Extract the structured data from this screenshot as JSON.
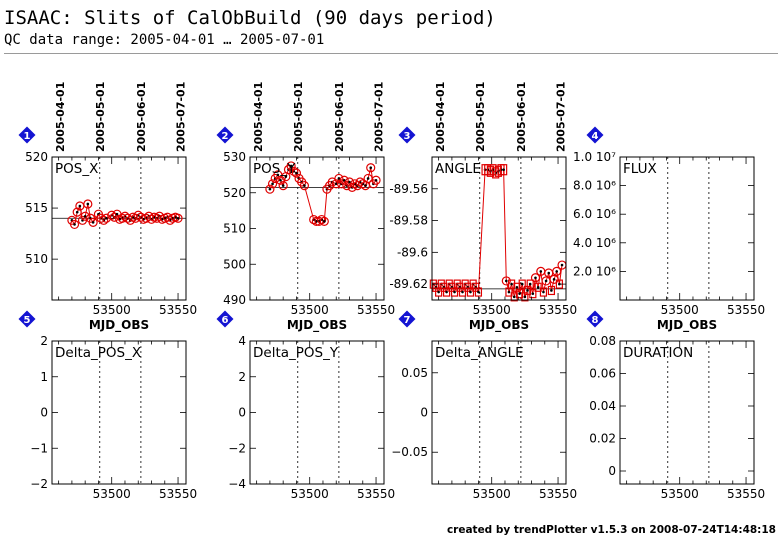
{
  "header": {
    "title": "ISAAC: Slits of CalObBuild (90 days period)",
    "subtitle": "QC data range: 2005-04-01 … 2005-07-01"
  },
  "footer": {
    "text": "created by trendPlotter v1.5.3 on 2008-07-24T14:48:18"
  },
  "colors": {
    "data": "#e00000",
    "points": "#000000",
    "marker": "#1414d2",
    "vline": "#000000",
    "refline": "#000000"
  },
  "date_axis": {
    "ticks": [
      "2005-04-01",
      "2005-05-01",
      "2005-06-01",
      "2005-07-01"
    ],
    "tick_mjd": [
      53461,
      53491,
      53522,
      53552
    ]
  },
  "chart_data": [
    {
      "id": "1",
      "type": "scatter",
      "title": "POS_X",
      "xlabel": "MJD_OBS",
      "xlim": [
        53455,
        53556
      ],
      "xticks": [
        53500,
        53550
      ],
      "ylim": [
        506,
        520
      ],
      "yticks": [
        510,
        515,
        520
      ],
      "yticklabels": [
        "510",
        "515",
        "520"
      ],
      "reference": 514,
      "x": [
        53470,
        53472,
        53474,
        53476,
        53478,
        53480,
        53482,
        53484,
        53486,
        53490,
        53492,
        53494,
        53496,
        53500,
        53502,
        53504,
        53506,
        53508,
        53510,
        53512,
        53514,
        53516,
        53518,
        53520,
        53522,
        53524,
        53526,
        53528,
        53530,
        53532,
        53534,
        53536,
        53538,
        53540,
        53542,
        53544,
        53546,
        53548,
        53550
      ],
      "y": [
        513.8,
        513.4,
        514.6,
        515.2,
        513.8,
        514.2,
        515.4,
        514.0,
        513.6,
        514.4,
        514.0,
        513.8,
        514.0,
        514.3,
        514.1,
        514.4,
        513.9,
        514.0,
        514.2,
        514.0,
        513.8,
        514.1,
        514.0,
        514.3,
        514.1,
        513.9,
        514.0,
        514.2,
        513.9,
        514.1,
        514.0,
        514.2,
        513.9,
        514.0,
        514.1,
        513.8,
        514.0,
        514.1,
        514.0
      ]
    },
    {
      "id": "2",
      "type": "scatter",
      "title": "POS_Y",
      "xlabel": "MJD_OBS",
      "xlim": [
        53455,
        53556
      ],
      "xticks": [
        53500,
        53550
      ],
      "ylim": [
        490,
        530
      ],
      "yticks": [
        490,
        500,
        510,
        520,
        530
      ],
      "yticklabels": [
        "490",
        "500",
        "510",
        "520",
        "530"
      ],
      "reference": 521.5,
      "x": [
        53470,
        53472,
        53474,
        53476,
        53478,
        53480,
        53482,
        53484,
        53486,
        53488,
        53490,
        53492,
        53494,
        53496,
        53503,
        53505,
        53507,
        53509,
        53511,
        53513,
        53515,
        53517,
        53520,
        53522,
        53524,
        53526,
        53528,
        53530,
        53532,
        53534,
        53536,
        53538,
        53540,
        53542,
        53544,
        53546,
        53548,
        53550
      ],
      "y": [
        521.0,
        522.5,
        524.0,
        525.0,
        523.5,
        522.0,
        524.5,
        526.5,
        527.5,
        526.0,
        525.5,
        524.0,
        523.0,
        522.0,
        512.5,
        512.0,
        512.0,
        512.5,
        512.0,
        521.0,
        522.0,
        523.0,
        522.5,
        524.0,
        522.5,
        523.5,
        522.0,
        523.0,
        521.5,
        522.5,
        522.0,
        523.0,
        522.5,
        522.0,
        524.0,
        527.0,
        522.5,
        523.5
      ]
    },
    {
      "id": "3",
      "type": "scatter",
      "title": "ANGLE",
      "xlabel": "MJD_OBS",
      "xlim": [
        53455,
        53556
      ],
      "xticks": [
        53500,
        53550
      ],
      "ylim": [
        -89.63,
        -89.54
      ],
      "yticks": [
        -89.62,
        -89.6,
        -89.58,
        -89.56
      ],
      "yticklabels": [
        "-89.62",
        "-89.6",
        "-89.58",
        "-89.56"
      ],
      "reference": -89.623,
      "x": [
        53456,
        53458,
        53460,
        53462,
        53464,
        53466,
        53468,
        53470,
        53472,
        53474,
        53476,
        53478,
        53480,
        53482,
        53484,
        53486,
        53488,
        53490,
        53495,
        53497,
        53499,
        53501,
        53503,
        53505,
        53507,
        53509,
        53511,
        53513,
        53515,
        53517,
        53519,
        53521,
        53523,
        53525,
        53527,
        53529,
        53531,
        53533,
        53535,
        53537,
        53539,
        53541,
        53543,
        53545,
        53547,
        53549,
        53551,
        53553
      ],
      "y": [
        -89.62,
        -89.622,
        -89.625,
        -89.62,
        -89.622,
        -89.625,
        -89.62,
        -89.622,
        -89.625,
        -89.62,
        -89.622,
        -89.625,
        -89.62,
        -89.622,
        -89.625,
        -89.62,
        -89.622,
        -89.625,
        -89.548,
        -89.548,
        -89.549,
        -89.548,
        -89.55,
        -89.549,
        -89.548,
        -89.548,
        -89.618,
        -89.625,
        -89.62,
        -89.628,
        -89.622,
        -89.626,
        -89.62,
        -89.628,
        -89.624,
        -89.62,
        -89.626,
        -89.616,
        -89.622,
        -89.612,
        -89.625,
        -89.618,
        -89.613,
        -89.624,
        -89.617,
        -89.612,
        -89.62,
        -89.608
      ]
    },
    {
      "id": "4",
      "type": "scatter",
      "title": "FLUX",
      "xlabel": "MJD_OBS",
      "xlim": [
        53455,
        53556
      ],
      "xticks": [
        53500,
        53550
      ],
      "ylim": [
        0,
        10000000
      ],
      "yticks": [
        2000000,
        4000000,
        6000000,
        8000000,
        10000000
      ],
      "yticklabels": [
        "2.0 10⁶",
        "4.0 10⁶",
        "6.0 10⁶",
        "8.0 10⁶",
        "1.0 10⁷"
      ],
      "reference": null,
      "x": [],
      "y": []
    },
    {
      "id": "5",
      "type": "scatter",
      "title": "Delta_POS_X",
      "xlabel": "",
      "xlim": [
        53455,
        53556
      ],
      "xticks": [
        53500,
        53550
      ],
      "ylim": [
        -2,
        2
      ],
      "yticks": [
        -2,
        -1,
        0,
        1,
        2
      ],
      "yticklabels": [
        "−2",
        "−1",
        "0",
        "1",
        "2"
      ],
      "reference": null,
      "x": [],
      "y": []
    },
    {
      "id": "6",
      "type": "scatter",
      "title": "Delta_POS_Y",
      "xlabel": "",
      "xlim": [
        53455,
        53556
      ],
      "xticks": [
        53500,
        53550
      ],
      "ylim": [
        -4,
        4
      ],
      "yticks": [
        -4,
        -2,
        0,
        2,
        4
      ],
      "yticklabels": [
        "−4",
        "−2",
        "0",
        "2",
        "4"
      ],
      "reference": null,
      "x": [],
      "y": []
    },
    {
      "id": "7",
      "type": "scatter",
      "title": "Delta_ANGLE",
      "xlabel": "",
      "xlim": [
        53455,
        53556
      ],
      "xticks": [
        53500,
        53550
      ],
      "ylim": [
        -0.09,
        0.09
      ],
      "yticks": [
        -0.05,
        0,
        0.05
      ],
      "yticklabels": [
        "−0.05",
        "0",
        "0.05"
      ],
      "reference": null,
      "x": [],
      "y": []
    },
    {
      "id": "8",
      "type": "scatter",
      "title": "DURATION",
      "xlabel": "",
      "xlim": [
        53455,
        53556
      ],
      "xticks": [
        53500,
        53550
      ],
      "ylim": [
        -0.008,
        0.08
      ],
      "yticks": [
        0,
        0.02,
        0.04,
        0.06,
        0.08
      ],
      "yticklabels": [
        "0",
        "0.02",
        "0.04",
        "0.06",
        "0.08"
      ],
      "reference": null,
      "x": [],
      "y": []
    }
  ]
}
